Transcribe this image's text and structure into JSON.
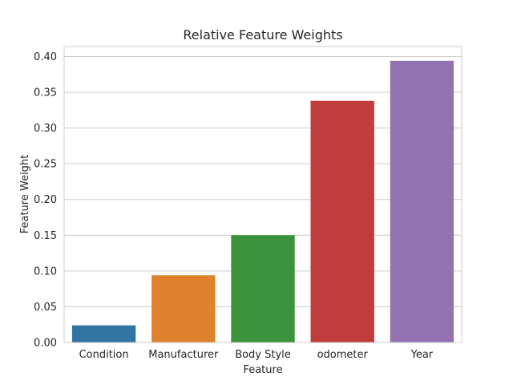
{
  "chart_data": {
    "type": "bar",
    "title": "Relative Feature Weights",
    "xlabel": "Feature",
    "ylabel": "Feature Weight",
    "categories": [
      "Condition",
      "Manufacturer",
      "Body Style",
      "odometer",
      "Year"
    ],
    "values": [
      0.024,
      0.094,
      0.15,
      0.338,
      0.394
    ],
    "colors": [
      "#3274a1",
      "#e1812c",
      "#3a923a",
      "#c03d3e",
      "#9372b2"
    ],
    "ylim": [
      0,
      0.414
    ],
    "yticks": [
      "0.00",
      "0.05",
      "0.10",
      "0.15",
      "0.20",
      "0.25",
      "0.30",
      "0.35",
      "0.40"
    ],
    "grid": true,
    "legend": "none"
  }
}
